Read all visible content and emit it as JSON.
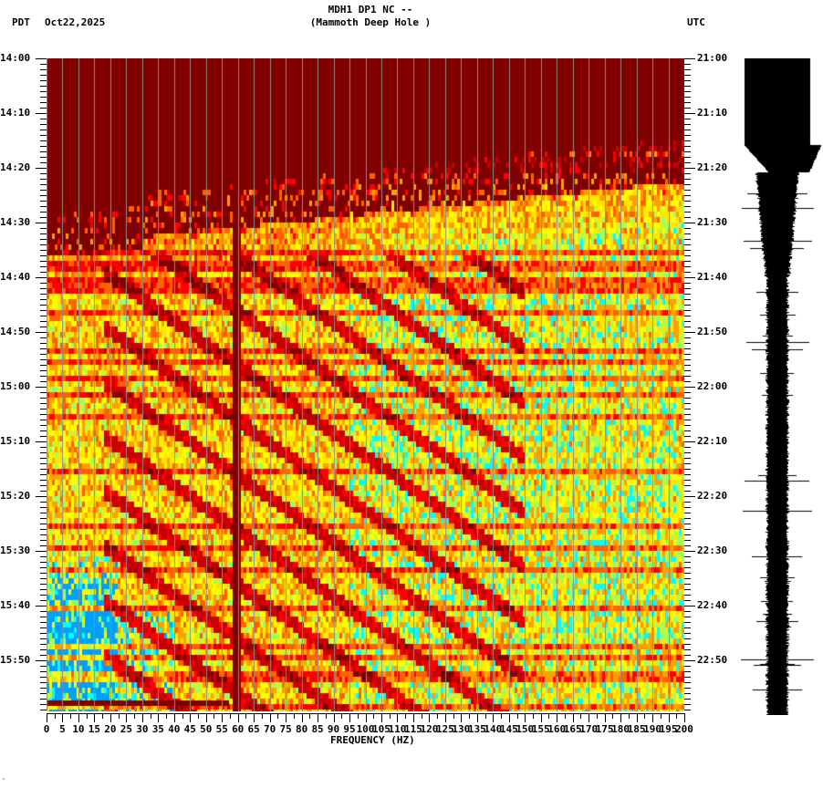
{
  "header": {
    "station_line": "MDH1 DP1 NC --",
    "station_name": "(Mammoth Deep Hole )",
    "left_timezone": "PDT",
    "date": "Oct22,2025",
    "right_timezone": "UTC"
  },
  "colors": {
    "background_low": "#800000",
    "grid": "#8c8c8c",
    "seismogram": "#000000",
    "colormap": [
      "#800000",
      "#ff0000",
      "#ff8000",
      "#ffff00",
      "#80ff80",
      "#00ffff",
      "#0080ff"
    ]
  },
  "chart_data": {
    "type": "heatmap",
    "title": "MDH1 DP1 NC -- (Mammoth Deep Hole )",
    "subtitle": "Oct22,2025",
    "xlabel": "FREQUENCY (HZ)",
    "ylabel_left": "PDT",
    "ylabel_right": "UTC",
    "xlim": [
      0,
      200
    ],
    "x_ticks": [
      "0",
      "5",
      "10",
      "15",
      "20",
      "25",
      "30",
      "35",
      "40",
      "45",
      "50",
      "55",
      "60",
      "65",
      "70",
      "75",
      "80",
      "85",
      "90",
      "95",
      "100",
      "105",
      "110",
      "115",
      "120",
      "125",
      "130",
      "135",
      "140",
      "145",
      "150",
      "155",
      "160",
      "165",
      "170",
      "175",
      "180",
      "185",
      "190",
      "195",
      "200"
    ],
    "y_ticks_left": [
      "14:00",
      "14:10",
      "14:20",
      "14:30",
      "14:40",
      "14:50",
      "15:00",
      "15:10",
      "15:20",
      "15:30",
      "15:40",
      "15:50"
    ],
    "y_ticks_right": [
      "21:00",
      "21:10",
      "21:20",
      "21:30",
      "21:40",
      "21:50",
      "22:00",
      "22:10",
      "22:20",
      "22:30",
      "22:40",
      "22:50"
    ],
    "grid": "vertical lines every 5 Hz",
    "notes": [
      "14:00-14:20 quiet (dark red, low power) across all frequencies",
      "Onset of energy ~14:22 at high frequencies, ~14:28 at low frequencies",
      "Diagonal banding patterns (dark red stripes) sweeping across 20-130 Hz from ~14:35 to 16:00",
      "Persistent dark-red line near 60 Hz",
      "Highest power (cyan/blue) at 0-20 Hz from ~15:28 to 16:00",
      "Broadband yellow/orange power 100-200 Hz from ~14:40 onward"
    ]
  },
  "seismogram": {
    "label": "trace",
    "description": "Saturated black trace until ~14:15, tapering to narrow trace with spikes thereafter"
  },
  "footer": {
    "corner_mark": "·"
  }
}
